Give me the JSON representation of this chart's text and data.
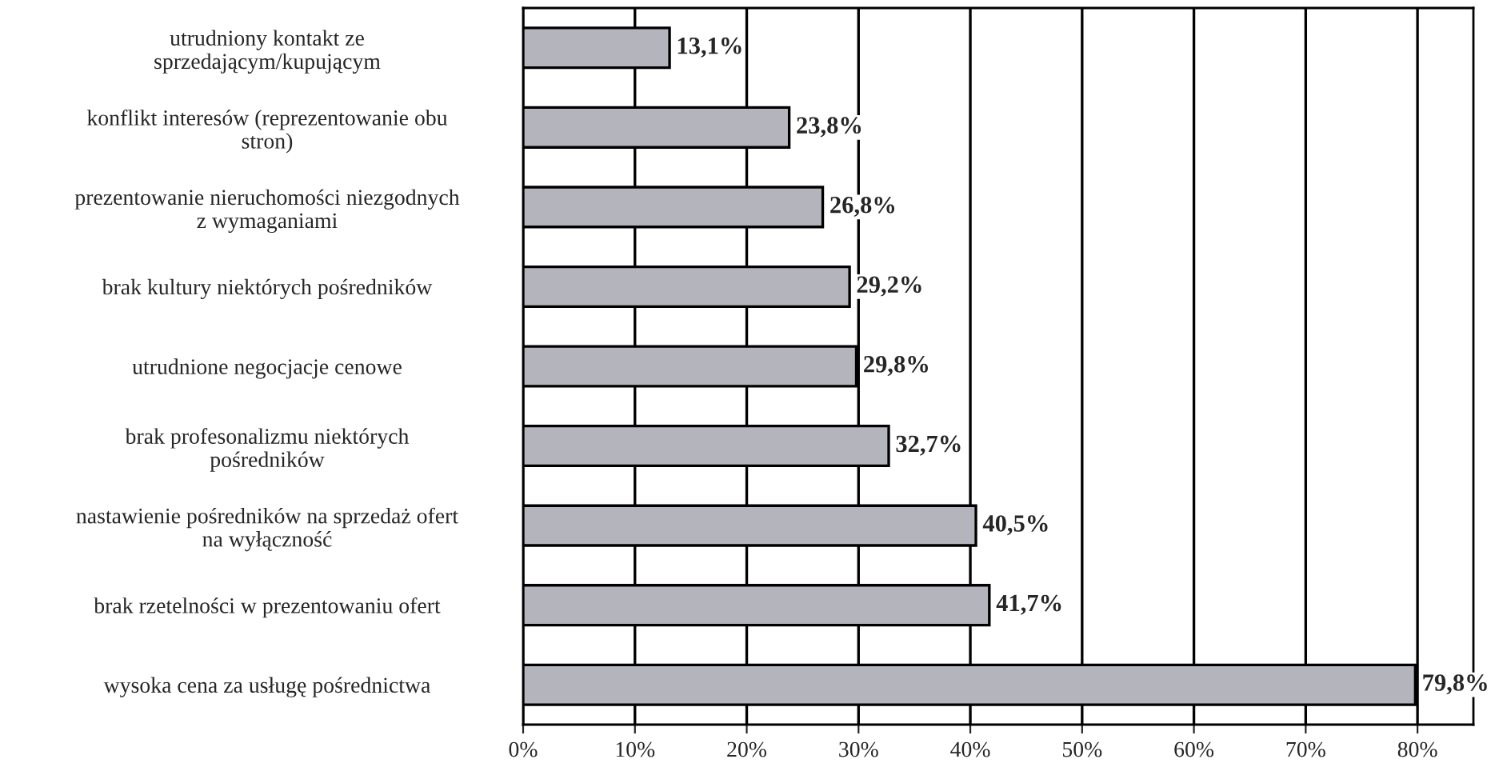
{
  "chart_data": {
    "type": "bar",
    "orientation": "horizontal",
    "categories": [
      "utrudniony kontakt ze\nsprzedającym/kupującym",
      "konflikt interesów (reprezentowanie obu\nstron)",
      "prezentowanie nieruchomości niezgodnych\nz wymaganiami",
      "brak kultury niektórych pośredników",
      "utrudnione negocjacje cenowe",
      "brak profesonalizmu niektórych\npośredników",
      "nastawienie pośredników na sprzedaż ofert\nna wyłączność",
      "brak rzetelności w prezentowaniu ofert",
      "wysoka cena za usługę pośrednictwa"
    ],
    "values": [
      13.1,
      23.8,
      26.8,
      29.2,
      29.8,
      32.7,
      40.5,
      41.7,
      79.8
    ],
    "value_labels": [
      "13,1%",
      "23,8%",
      "26,8%",
      "29,2%",
      "29,8%",
      "32,7%",
      "40,5%",
      "41,7%",
      "79,8%"
    ],
    "color": "#b4b4bc",
    "xlim": [
      0,
      85
    ],
    "xticks": [
      {
        "value": 0,
        "label": "0%"
      },
      {
        "value": 10,
        "label": "10%"
      },
      {
        "value": 20,
        "label": "20%"
      },
      {
        "value": 30,
        "label": "30%"
      },
      {
        "value": 40,
        "label": "40%"
      },
      {
        "value": 50,
        "label": "50%"
      },
      {
        "value": 60,
        "label": "60%"
      },
      {
        "value": 70,
        "label": "70%"
      },
      {
        "value": 80,
        "label": "80%"
      }
    ],
    "grid": "x"
  }
}
